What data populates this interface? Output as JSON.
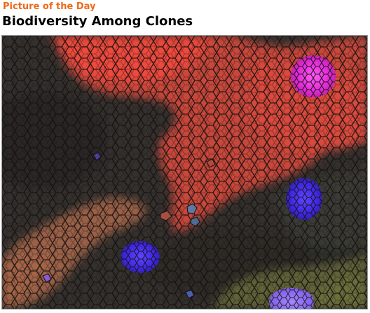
{
  "header": {
    "kicker": "Picture of the Day",
    "title": "Biodiversity Among Clones"
  },
  "image": {
    "subject": "mosaic-of-cells",
    "colors": {
      "background_tissue": "#35312e",
      "red_clone": "#e8433a",
      "red_clone_dark": "#b63a30",
      "magenta_clone": "#f22ce8",
      "blue_clone": "#4a2ff0",
      "lavender_clone": "#8d6cf2",
      "tan_clone": "#9d6244",
      "olive_clone": "#65683a",
      "grout": "#1a1614"
    }
  }
}
